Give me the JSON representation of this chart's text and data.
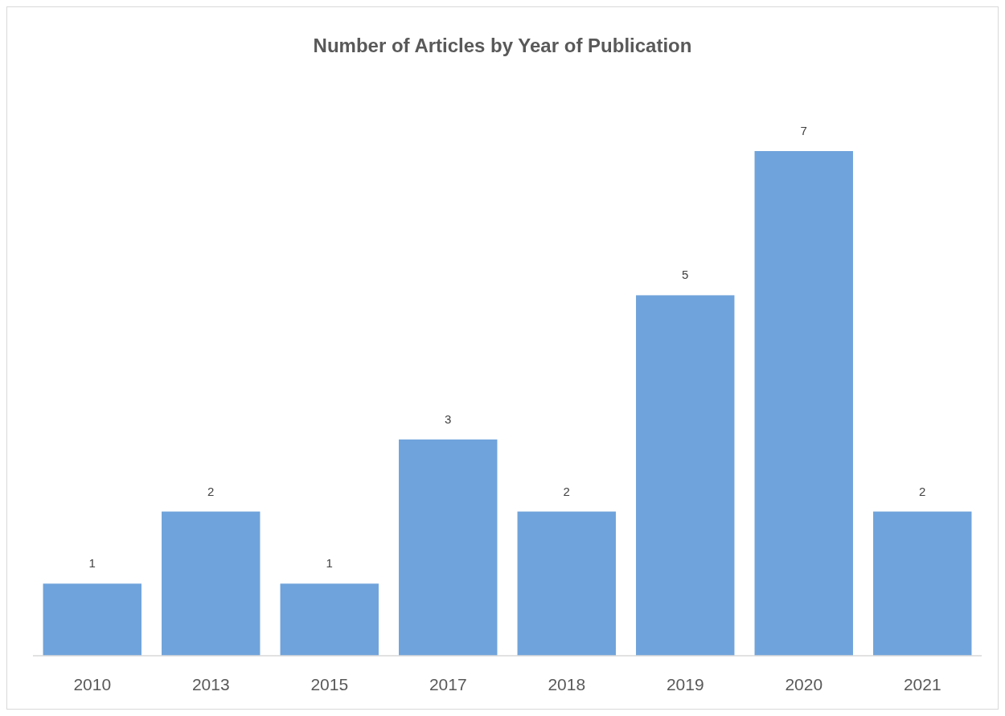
{
  "chart_data": {
    "type": "bar",
    "title": "Number of Articles by Year of Publication",
    "categories": [
      "2010",
      "2013",
      "2015",
      "2017",
      "2018",
      "2019",
      "2020",
      "2021"
    ],
    "values": [
      1,
      2,
      1,
      3,
      2,
      5,
      7,
      2
    ],
    "color": "#6fa3db",
    "data_labels": true
  }
}
